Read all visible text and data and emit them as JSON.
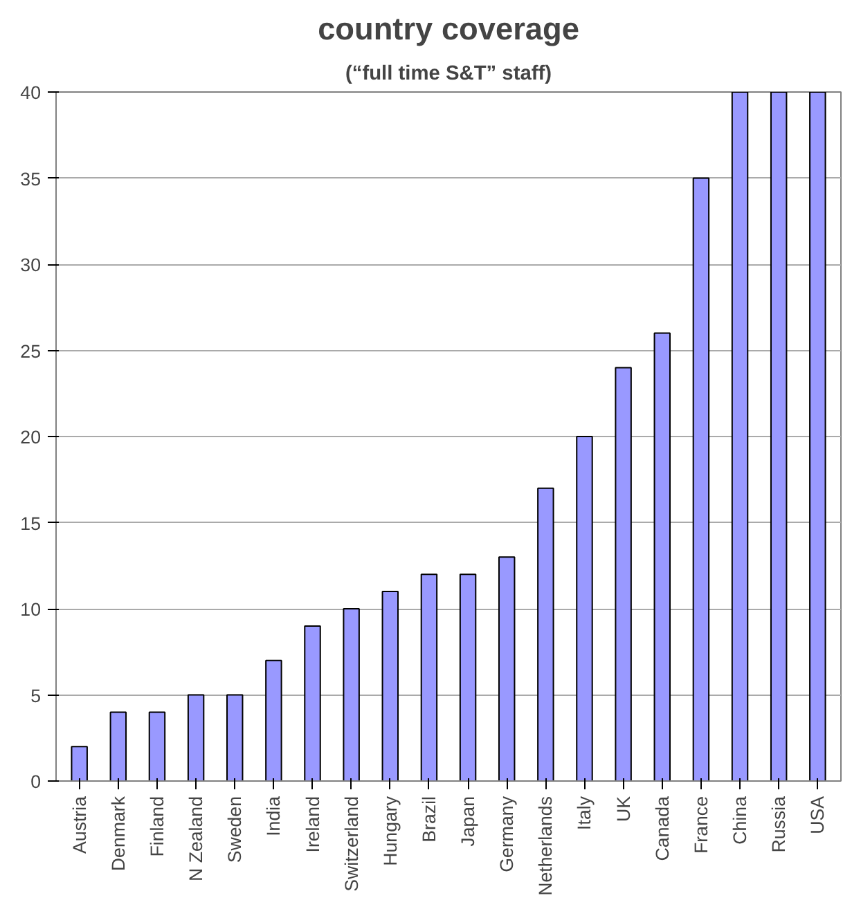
{
  "chart_data": {
    "type": "bar",
    "title": "country coverage",
    "subtitle": "(“full time S&T” staff)",
    "categories": [
      "Austria",
      "Denmark",
      "Finland",
      "N Zealand",
      "Sweden",
      "India",
      "Ireland",
      "Switzerland",
      "Hungary",
      "Brazil",
      "Japan",
      "Germany",
      "Netherlands",
      "Italy",
      "UK",
      "Canada",
      "France",
      "China",
      "Russia",
      "USA"
    ],
    "values": [
      2,
      4,
      4,
      5,
      5,
      7,
      9,
      10,
      11,
      12,
      12,
      13,
      17,
      20,
      24,
      26,
      35,
      40,
      40,
      40
    ],
    "color": "#9999ff",
    "ylim": [
      0,
      40
    ],
    "yticks": [
      0,
      5,
      10,
      15,
      20,
      25,
      30,
      35,
      40
    ],
    "grid": "y"
  }
}
